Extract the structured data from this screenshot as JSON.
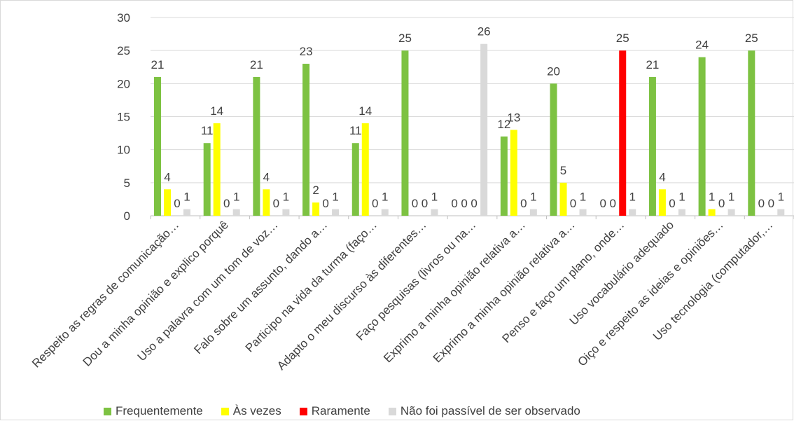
{
  "chart_data": {
    "type": "bar",
    "categories": [
      "Respeito as regras de comunicação…",
      "Dou a minha opinião e explico porquê",
      "Uso a palavra com um tom de voz…",
      "Falo sobre um assunto, dando a…",
      "Participo na vida da turma (faço…",
      "Adapto o meu discurso às diferentes…",
      "Faço pesquisas (livros ou na…",
      "Exprimo a minha opinião relativa a…",
      "Exprimo a minha opinião relativa a…",
      "Penso e faço um plano, onde…",
      "Uso vocabulário adequado",
      "Oiço e respeito as ideias e opiniões…",
      "Uso tecnologia (computador,…"
    ],
    "series": [
      {
        "name": "Frequentemente",
        "color": "#7dc242",
        "values": [
          21,
          11,
          21,
          23,
          11,
          25,
          0,
          12,
          20,
          0,
          21,
          24,
          25
        ]
      },
      {
        "name": "Às vezes",
        "color": "#ffff00",
        "values": [
          4,
          14,
          4,
          2,
          14,
          0,
          0,
          13,
          5,
          0,
          4,
          1,
          0
        ]
      },
      {
        "name": "Raramente",
        "color": "#ff0000",
        "values": [
          0,
          0,
          0,
          0,
          0,
          0,
          0,
          0,
          0,
          25,
          0,
          0,
          0
        ]
      },
      {
        "name": "Não foi passível de ser observado",
        "color": "#d9d9d9",
        "values": [
          1,
          1,
          1,
          1,
          1,
          1,
          26,
          1,
          1,
          1,
          1,
          1,
          1
        ]
      }
    ],
    "labels": [
      [
        "21",
        "4",
        "0",
        "1"
      ],
      [
        "11",
        "14",
        "0",
        "1"
      ],
      [
        "21",
        "4",
        "0",
        "1"
      ],
      [
        "23",
        "2",
        "0",
        "1"
      ],
      [
        "11",
        "14",
        "0",
        "1"
      ],
      [
        "25",
        "0",
        "0",
        "1"
      ],
      [
        "0",
        "0",
        "0",
        "26"
      ],
      [
        "12",
        "13",
        "0",
        "1"
      ],
      [
        "20",
        "5",
        "0",
        "1"
      ],
      [
        "0",
        "0",
        "25",
        "1"
      ],
      [
        "21",
        "4",
        "0",
        "1"
      ],
      [
        "24",
        "1",
        "0",
        "1"
      ],
      [
        "25",
        "0",
        "0",
        "1"
      ]
    ],
    "yticks": [
      "0",
      "5",
      "10",
      "15",
      "20",
      "25",
      "30"
    ],
    "ylim": [
      0,
      30
    ],
    "grid": true,
    "legend_position": "bottom"
  }
}
